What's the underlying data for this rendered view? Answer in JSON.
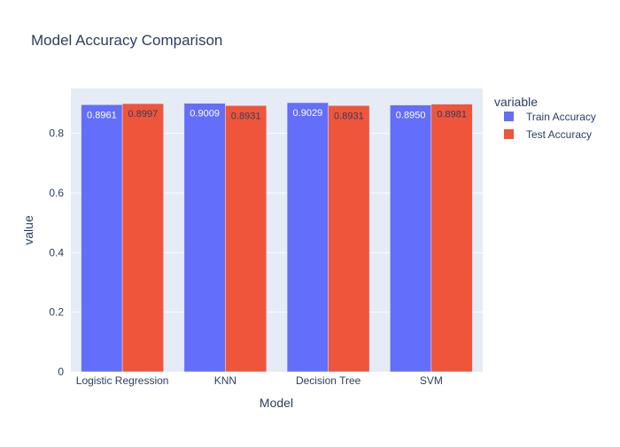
{
  "chart_data": {
    "type": "bar",
    "title": "Model Accuracy Comparison",
    "xlabel": "Model",
    "ylabel": "value",
    "categories": [
      "Logistic Regression",
      "KNN",
      "Decision Tree",
      "SVM"
    ],
    "series": [
      {
        "name": "Train Accuracy",
        "values": [
          0.8961,
          0.9009,
          0.9029,
          0.895
        ],
        "labels": [
          "0.8961",
          "0.9009",
          "0.9029",
          "0.8950"
        ],
        "color": "#636efa",
        "label_color": "#ffffff"
      },
      {
        "name": "Test Accuracy",
        "values": [
          0.8997,
          0.8931,
          0.8931,
          0.8981
        ],
        "labels": [
          "0.8997",
          "0.8931",
          "0.8931",
          "0.8981"
        ],
        "color": "#ef553b",
        "label_color": "#2a3f5f"
      }
    ],
    "ylim": [
      0,
      0.9504
    ],
    "yticks": [
      0,
      0.2,
      0.4,
      0.6,
      0.8
    ],
    "ytick_labels": [
      "0",
      "0.2",
      "0.4",
      "0.6",
      "0.8"
    ],
    "legend_title": "variable",
    "legend_position": "top-right",
    "grid": true,
    "plot_bg": "#e5ecf6",
    "grid_color": "#ffffff",
    "text_color": "#2a3f5f"
  }
}
